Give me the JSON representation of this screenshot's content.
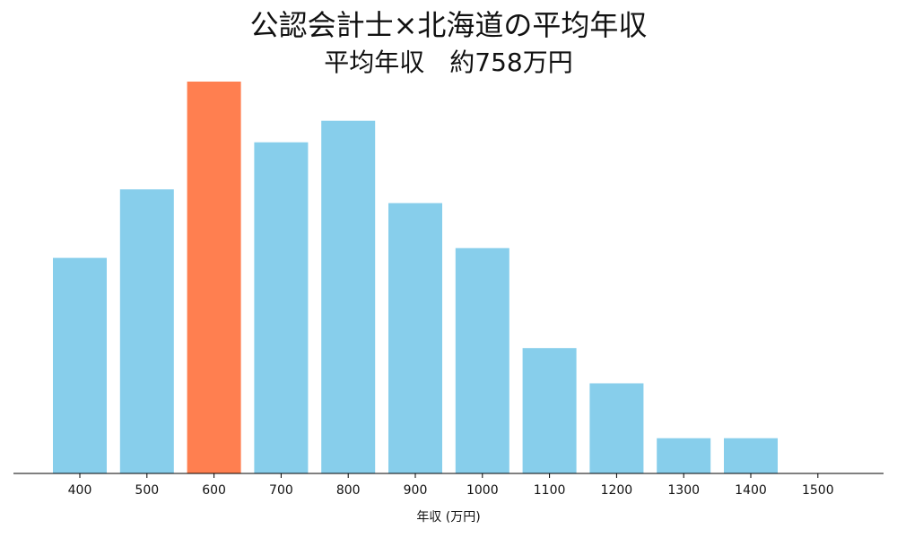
{
  "chart_data": {
    "type": "bar",
    "title": "公認会計士×北海道の平均年収",
    "subtitle": "平均年収　約758万円",
    "xlabel": "年収 (万円)",
    "ylabel": "",
    "categories": [
      "400",
      "500",
      "600",
      "700",
      "800",
      "900",
      "1000",
      "1100",
      "1200",
      "1300",
      "1400",
      "1500"
    ],
    "values": [
      11,
      14.5,
      20,
      16.9,
      18,
      13.8,
      11.5,
      6.4,
      4.6,
      1.8,
      1.8,
      0
    ],
    "highlight_category": "600",
    "ylim": [
      0,
      20
    ],
    "grid": false,
    "y_axis_visible": false,
    "colors": {
      "bar": "#87CEEB",
      "highlight": "#FF7F50",
      "axis": "#000000"
    }
  }
}
